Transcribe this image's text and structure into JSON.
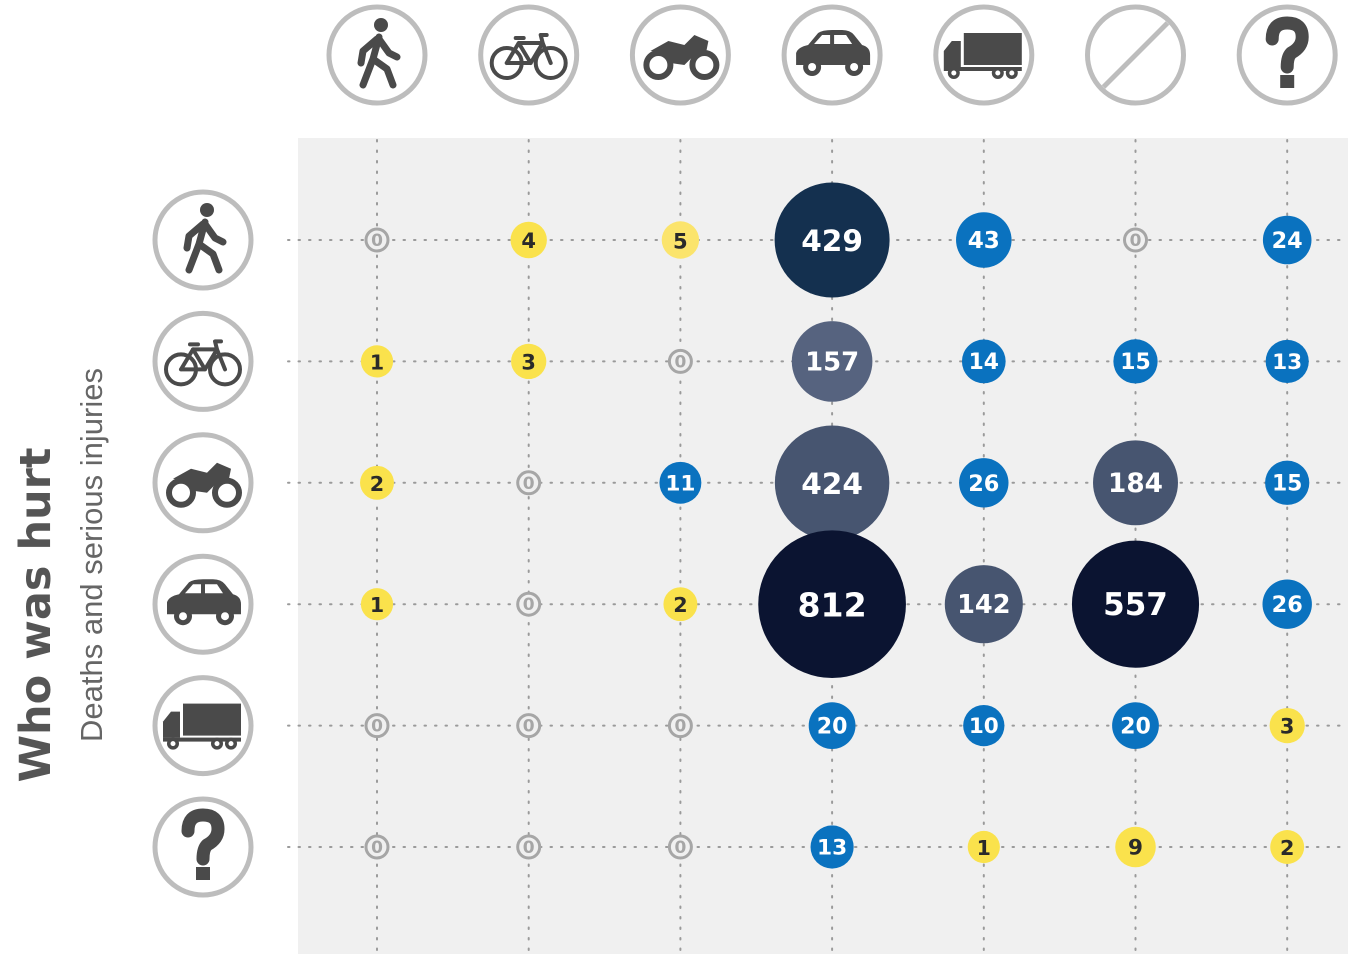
{
  "chart_data": {
    "type": "bubble",
    "title": "Who was hurt",
    "subtitle": "Deaths and serious injuries",
    "columns": [
      null,
      null,
      null,
      null,
      null,
      null,
      null
    ],
    "rows": [
      null,
      null,
      null,
      null,
      null,
      null
    ],
    "values": [
      [
        0,
        4,
        5,
        429,
        43,
        0,
        24
      ],
      [
        1,
        3,
        0,
        157,
        14,
        15,
        13
      ],
      [
        2,
        0,
        11,
        424,
        26,
        184,
        15
      ],
      [
        1,
        0,
        2,
        812,
        142,
        557,
        26
      ],
      [
        0,
        0,
        0,
        20,
        10,
        20,
        3
      ],
      [
        0,
        0,
        0,
        13,
        1,
        9,
        2
      ]
    ],
    "colors": [
      [
        "#a6a6a6",
        "#fae24c",
        "#fbe46c",
        "#14304f",
        "#0a72bf",
        "#a6a6a6",
        "#0a72bf"
      ],
      [
        "#fae24c",
        "#fae24c",
        "#a6a6a6",
        "#56637f",
        "#0a72bf",
        "#0a72bf",
        "#0a72bf"
      ],
      [
        "#fae24c",
        "#a6a6a6",
        "#0a72bf",
        "#475570",
        "#0a72bf",
        "#475570",
        "#0a72bf"
      ],
      [
        "#fae24c",
        "#a6a6a6",
        "#fae24c",
        "#0b1431",
        "#475570",
        "#0b1431",
        "#0a72bf"
      ],
      [
        "#a6a6a6",
        "#a6a6a6",
        "#a6a6a6",
        "#0a72bf",
        "#0a72bf",
        "#0a72bf",
        "#fae24c"
      ],
      [
        "#a6a6a6",
        "#a6a6a6",
        "#a6a6a6",
        "#0a72bf",
        "#fae24c",
        "#fae24c",
        "#fae24c"
      ]
    ]
  }
}
